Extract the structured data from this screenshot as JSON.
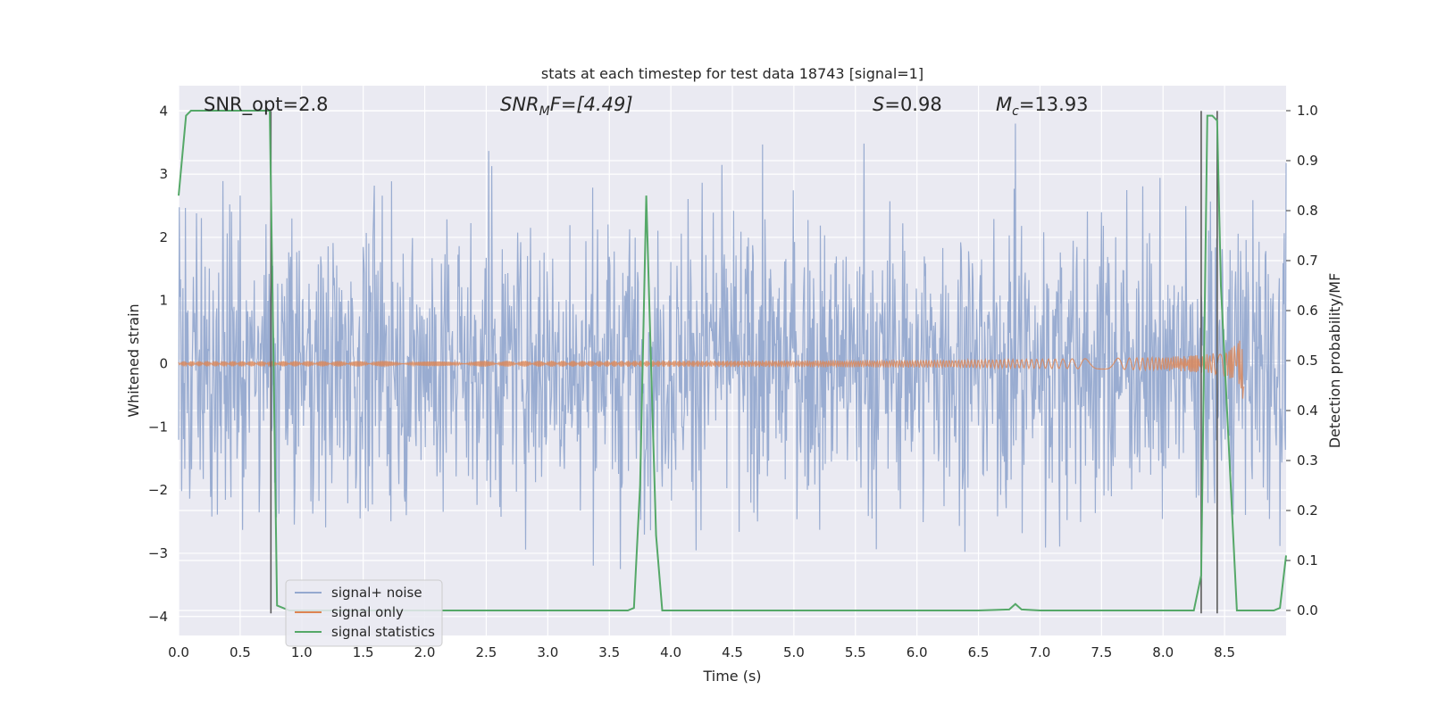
{
  "chart_data": {
    "type": "line",
    "title": "stats at each timestep for test data 18743 [signal=1]",
    "xlabel": "Time (s)",
    "ylabel": "Whitened strain",
    "ylabel_right": "Detection probability/MF",
    "xlim": [
      0.0,
      9.0
    ],
    "ylim": [
      -4.3,
      4.4
    ],
    "ylim_right": [
      -0.05,
      1.05
    ],
    "x_ticks": [
      "0.0",
      "0.5",
      "1.0",
      "1.5",
      "2.0",
      "2.5",
      "3.0",
      "3.5",
      "4.0",
      "4.5",
      "5.0",
      "5.5",
      "6.0",
      "6.5",
      "7.0",
      "7.5",
      "8.0",
      "8.5"
    ],
    "y_ticks": [
      "4",
      "3",
      "2",
      "1",
      "0",
      "−1",
      "−2",
      "−3",
      "−4"
    ],
    "y_ticks_right": [
      "1.0",
      "0.9",
      "0.8",
      "0.7",
      "0.6",
      "0.5",
      "0.4",
      "0.3",
      "0.2",
      "0.1",
      "0.0"
    ],
    "grid": true,
    "legend_position": "lower left",
    "annotations": {
      "snr_opt": "SNR_opt=2.8",
      "snr_mf_main": "SNR",
      "snr_mf_sub": "M",
      "snr_mf_rest": "F=[4.49]",
      "s_main": "S",
      "s_rest": "=0.98",
      "mc_main": "M",
      "mc_sub": "c",
      "mc_rest": "=13.93"
    },
    "series": [
      {
        "name": "signal+ noise",
        "color": "#95a9cf",
        "envelope_note": "dense noisy strain, roughly symmetric, amplitude ~±2 with spikes to ~±3.8",
        "x_range": [
          0.0,
          9.0
        ],
        "typical_amplitude": 2.0,
        "max_amplitude": 3.8
      },
      {
        "name": "signal only",
        "color": "#dd8452",
        "note": "chirp, near zero, growing to ~0.6 amplitude near t=8.65 s then cut off",
        "x_range": [
          0.0,
          8.66
        ],
        "peak_time": 8.65,
        "peak_amplitude": 0.6
      },
      {
        "name": "signal statistics",
        "color": "#55a868",
        "axis": "right",
        "x": [
          0.0,
          0.06,
          0.1,
          0.2,
          0.3,
          0.4,
          0.5,
          0.6,
          0.7,
          0.74,
          0.77,
          0.8,
          0.9,
          1.0,
          1.2,
          1.5,
          1.8,
          1.9,
          2.0,
          2.5,
          3.0,
          3.5,
          3.65,
          3.7,
          3.75,
          3.8,
          3.83,
          3.88,
          3.93,
          4.0,
          4.5,
          5.0,
          5.5,
          6.0,
          6.5,
          6.75,
          6.8,
          6.85,
          7.0,
          7.5,
          8.0,
          8.25,
          8.31,
          8.36,
          8.4,
          8.44,
          8.47,
          8.6,
          8.9,
          8.95,
          9.0
        ],
        "y": [
          0.83,
          0.99,
          1.0,
          1.0,
          1.0,
          1.0,
          1.0,
          1.0,
          1.0,
          1.0,
          0.52,
          0.01,
          0.0,
          0.0,
          0.0,
          0.0,
          0.0,
          0.0,
          0.0,
          0.0,
          0.0,
          0.0,
          0.0,
          0.005,
          0.25,
          0.83,
          0.57,
          0.15,
          0.0,
          0.0,
          0.0,
          0.0,
          0.0,
          0.0,
          0.0,
          0.002,
          0.013,
          0.002,
          0.0,
          0.0,
          0.0,
          0.0,
          0.07,
          0.99,
          0.99,
          0.98,
          0.65,
          0.0,
          0.0,
          0.005,
          0.11
        ]
      }
    ],
    "vertical_lines": [
      0.75,
      8.31,
      8.44
    ],
    "vertical_line_color": "#5a5a5a",
    "vertical_line_range": [
      -3.95,
      4.0
    ],
    "background_color": "#eaeaf2",
    "grid_color": "#ffffff"
  }
}
